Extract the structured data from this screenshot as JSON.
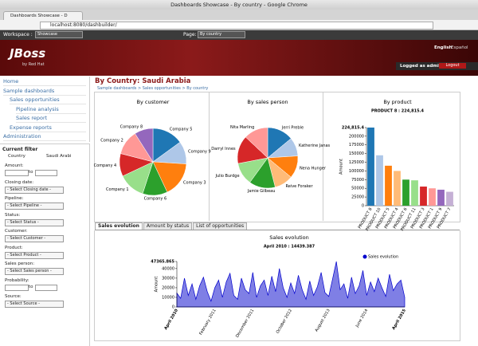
{
  "browser": {
    "window_title": "Dashboards Showcase - By country - Google Chrome",
    "tab": "Dashboards Showcase - D",
    "url": "localhost:8080/dashbuilder/"
  },
  "toolbar": {
    "workspace_label": "Workspace :",
    "workspace": "Showcase",
    "page_label": "Page:",
    "page": "By country"
  },
  "header": {
    "logo": "JBoss",
    "logo_sub": "by Red Hat",
    "lang_en": "English",
    "lang_es": "Español",
    "logged": "Logged as admin",
    "logout": "Logout"
  },
  "nav": [
    "Home",
    "Sample dashboards",
    "Sales opportunities",
    "Pipeline analysis",
    "Sales report",
    "Expense reports",
    "Administration"
  ],
  "filter": {
    "title": "Current filter",
    "country_label": "Country",
    "country": "Saudi Arabi",
    "fields": [
      {
        "label": "Amount:",
        "range": "to"
      },
      {
        "label": "Closing date:",
        "select": "- Select Closing date -"
      },
      {
        "label": "Pipeline:",
        "select": "- Select Pipeline -"
      },
      {
        "label": "Status:",
        "select": "- Select Status -"
      },
      {
        "label": "Customer:",
        "select": "- Select Customer -"
      },
      {
        "label": "Product:",
        "select": "- Select Product -"
      },
      {
        "label": "Sales person:",
        "select": "- Select Sales person -"
      },
      {
        "label": "Probability:",
        "range": "to"
      },
      {
        "label": "Source:",
        "select": "- Select Source -"
      }
    ]
  },
  "main": {
    "title": "By Country: Saudi Arabia",
    "breadcrumb": "Sample dashboards > Sales opportunities > By country"
  },
  "tabs": [
    "Sales evolution",
    "Amount by status",
    "List of opportunities"
  ],
  "chart_data": [
    {
      "type": "pie",
      "title": "By customer",
      "categories": [
        "Company 5",
        "Company 9",
        "Company 3",
        "Company 6",
        "Company 1",
        "Company 4",
        "Company 2",
        "Company 8"
      ],
      "values": [
        15,
        11,
        17,
        12,
        13,
        11,
        12,
        9
      ],
      "colors": [
        "#1f77b4",
        "#aec7e8",
        "#ff7f0e",
        "#2ca02c",
        "#98df8a",
        "#d62728",
        "#ff9896",
        "#9467bd"
      ]
    },
    {
      "type": "pie",
      "title": "By sales person",
      "categories": [
        "Jerri Preble",
        "Katherine Janas",
        "Nena Hunger",
        "Reive Foraker",
        "Jamie Gilbeau",
        "Julio Burdge",
        "Darryl Innes",
        "Nita Marling"
      ],
      "values": [
        14,
        10,
        12,
        10,
        14,
        12,
        15,
        13
      ],
      "colors": [
        "#1f77b4",
        "#aec7e8",
        "#ff7f0e",
        "#ffbb78",
        "#2ca02c",
        "#98df8a",
        "#d62728",
        "#ff9896"
      ]
    },
    {
      "type": "bar",
      "title": "By product",
      "subtitle": "PRODUCT 8 : 224,815.4",
      "y_label": "Amount",
      "categories": [
        "PRODUCT 8",
        "PRODUCT 10",
        "PRODUCT 5",
        "PRODUCT 4",
        "PRODUCT 6",
        "PRODUCT 11",
        "PRODUCT 3",
        "PRODUCT 1",
        "PRODUCT 9",
        "PRODUCT 7"
      ],
      "values": [
        224815.4,
        145000,
        115000,
        100000,
        75000,
        73000,
        55000,
        50000,
        46000,
        40000
      ],
      "colors": [
        "#1f77b4",
        "#aec7e8",
        "#ff7f0e",
        "#ffbb78",
        "#2ca02c",
        "#98df8a",
        "#d62728",
        "#ff9896",
        "#9467bd",
        "#c5b0d5"
      ],
      "ylim": [
        0,
        224815.4
      ],
      "yticks": [
        0,
        25000,
        50000,
        75000,
        100000,
        125000,
        150000,
        175000,
        200000,
        {
          "value": 224815.4,
          "label": "224,815.4"
        }
      ]
    },
    {
      "type": "area",
      "title": "Sales evolution",
      "subtitle": "April 2010 : 14439.387",
      "y_label": "Amount",
      "categories": [
        "April 2010",
        null,
        null,
        null,
        null,
        null,
        null,
        null,
        null,
        null,
        "February 2011",
        null,
        null,
        null,
        null,
        null,
        null,
        null,
        null,
        null,
        "December 2011",
        null,
        null,
        null,
        null,
        null,
        null,
        null,
        null,
        null,
        "October 2012",
        null,
        null,
        null,
        null,
        null,
        null,
        null,
        null,
        null,
        "August 2013",
        null,
        null,
        null,
        null,
        null,
        null,
        null,
        null,
        null,
        "June 2014",
        null,
        null,
        null,
        null,
        null,
        null,
        null,
        null,
        null,
        "April 2015"
      ],
      "series": [
        {
          "name": "Sales evolution",
          "color": "#0000cc",
          "values": [
            14439.387,
            9000,
            30000,
            12000,
            24000,
            8000,
            22000,
            31000,
            16000,
            6000,
            20000,
            28000,
            10000,
            26000,
            35000,
            12000,
            8000,
            30000,
            18000,
            14000,
            36000,
            10000,
            22000,
            28000,
            12000,
            32000,
            16000,
            40000,
            20000,
            10000,
            25000,
            14000,
            33000,
            18000,
            8000,
            27000,
            12000,
            21000,
            36000,
            15000,
            11000,
            29000,
            47365.865,
            18000,
            24000,
            9000,
            31000,
            14000,
            22000,
            38000,
            12000,
            26000,
            16000,
            30000,
            20000,
            11000,
            34000,
            17000,
            24000,
            28000,
            10000
          ]
        }
      ],
      "ylim": [
        0,
        47365.865
      ],
      "yticks": [
        0,
        10000,
        20000,
        30000,
        40000,
        {
          "value": 47365.865,
          "label": "47365.865"
        }
      ]
    }
  ]
}
